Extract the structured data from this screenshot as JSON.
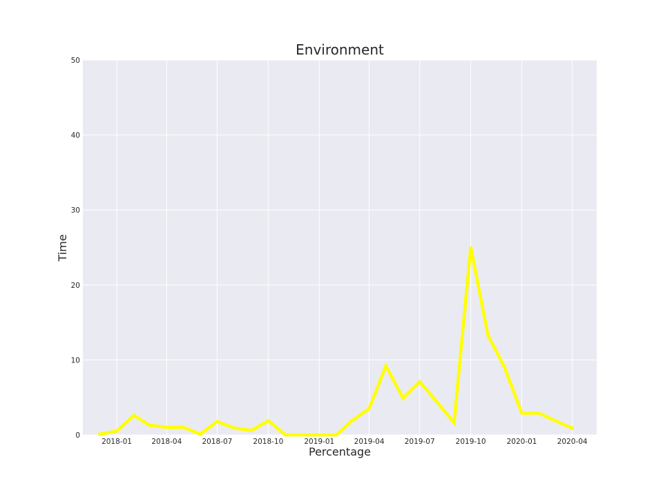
{
  "chart_data": {
    "type": "line",
    "title": "Environment",
    "xlabel": "Percentage",
    "ylabel": "Time",
    "ylim": [
      0,
      50
    ],
    "yticks": [
      0,
      10,
      20,
      30,
      40,
      50
    ],
    "xlim": [
      "2017-11-01",
      "2020-05-15"
    ],
    "xticks": [
      "2018-01",
      "2018-04",
      "2018-07",
      "2018-10",
      "2019-01",
      "2019-04",
      "2019-07",
      "2019-10",
      "2020-01",
      "2020-04"
    ],
    "grid": true,
    "legend": "none",
    "colors": {
      "background": "#eaeaf2",
      "grid": "#ffffff",
      "line": "#ffff00"
    },
    "series": [
      {
        "x": [
          "2017-12-01",
          "2018-01-01",
          "2018-02-01",
          "2018-03-01",
          "2018-04-01",
          "2018-05-01",
          "2018-06-01",
          "2018-07-01",
          "2018-08-01",
          "2018-09-01",
          "2018-10-01",
          "2018-11-01",
          "2018-12-01",
          "2019-01-01",
          "2019-02-01",
          "2019-03-01",
          "2019-04-01",
          "2019-05-01",
          "2019-06-01",
          "2019-07-01",
          "2019-08-01",
          "2019-09-01",
          "2019-10-01",
          "2019-11-01",
          "2019-12-01",
          "2020-01-01",
          "2020-02-01",
          "2020-03-01",
          "2020-04-01"
        ],
        "values": [
          0.1,
          0.5,
          2.6,
          1.3,
          1.0,
          1.0,
          0.1,
          1.8,
          0.9,
          0.6,
          1.9,
          0.0,
          0.0,
          0.0,
          0.0,
          1.9,
          3.5,
          9.2,
          4.9,
          7.1,
          4.4,
          1.6,
          25.1,
          13.3,
          9.0,
          2.9,
          2.9,
          1.9,
          0.9
        ]
      }
    ]
  }
}
